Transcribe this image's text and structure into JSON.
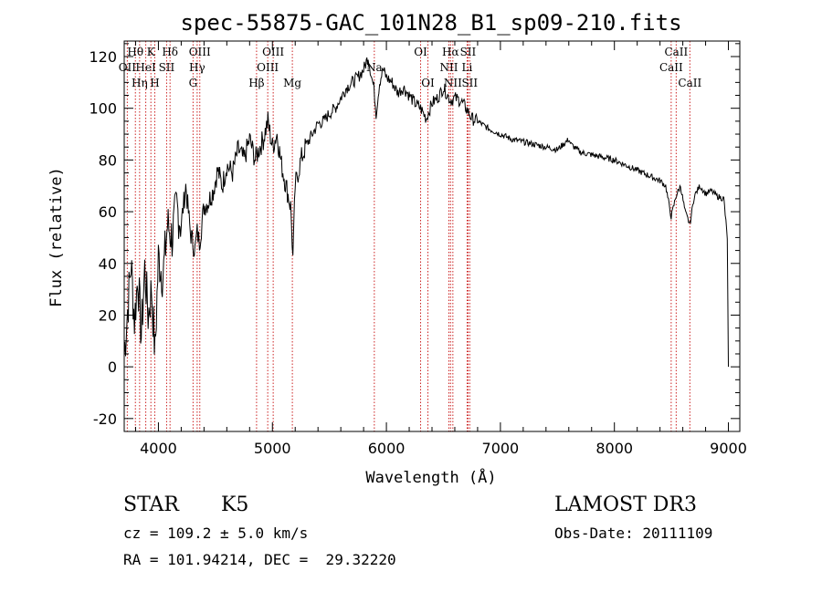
{
  "chart_data": {
    "type": "line",
    "title": "spec-55875-GAC_101N28_B1_sp09-210.fits",
    "xlabel": "Wavelength (Å)",
    "ylabel": "Flux (relative)",
    "xlim": [
      3700,
      9100
    ],
    "ylim": [
      -25,
      126
    ],
    "xticks": [
      4000,
      5000,
      6000,
      7000,
      8000,
      9000
    ],
    "yticks": [
      -20,
      0,
      20,
      40,
      60,
      80,
      100,
      120
    ],
    "grid": false,
    "series": [
      {
        "name": "flux",
        "x": [
          3700,
          3730,
          3760,
          3790,
          3820,
          3850,
          3880,
          3910,
          3940,
          3970,
          4000,
          4040,
          4080,
          4120,
          4160,
          4200,
          4240,
          4280,
          4320,
          4340,
          4360,
          4400,
          4440,
          4480,
          4520,
          4560,
          4600,
          4650,
          4700,
          4750,
          4800,
          4850,
          4880,
          4920,
          4960,
          5000,
          5040,
          5080,
          5120,
          5160,
          5180,
          5200,
          5250,
          5300,
          5350,
          5400,
          5450,
          5500,
          5550,
          5600,
          5650,
          5700,
          5750,
          5800,
          5840,
          5870,
          5890,
          5910,
          5940,
          5970,
          6000,
          6050,
          6100,
          6150,
          6200,
          6250,
          6300,
          6350,
          6400,
          6450,
          6500,
          6550,
          6563,
          6600,
          6650,
          6700,
          6750,
          6800,
          6900,
          7000,
          7100,
          7200,
          7300,
          7400,
          7500,
          7600,
          7620,
          7700,
          7800,
          7900,
          8000,
          8100,
          8200,
          8300,
          8400,
          8450,
          8498,
          8540,
          8580,
          8620,
          8662,
          8700,
          8750,
          8800,
          8850,
          8900,
          8960,
          8990,
          9000
        ],
        "y": [
          5,
          22,
          40,
          18,
          35,
          12,
          38,
          20,
          30,
          5,
          42,
          35,
          55,
          50,
          62,
          55,
          70,
          52,
          45,
          52,
          48,
          62,
          64,
          68,
          76,
          70,
          78,
          75,
          84,
          80,
          88,
          80,
          84,
          88,
          95,
          85,
          90,
          78,
          70,
          62,
          42,
          70,
          80,
          86,
          90,
          94,
          95,
          98,
          100,
          104,
          108,
          110,
          112,
          115,
          120,
          112,
          108,
          98,
          110,
          115,
          112,
          110,
          106,
          108,
          105,
          102,
          100,
          96,
          102,
          104,
          108,
          104,
          103,
          104,
          103,
          100,
          96,
          95,
          92,
          90,
          88,
          87,
          86,
          85,
          84,
          88,
          86,
          83,
          82,
          81,
          80,
          78,
          76,
          74,
          72,
          70,
          58,
          66,
          70,
          60,
          55,
          66,
          70,
          67,
          68,
          66,
          65,
          50,
          0
        ]
      }
    ],
    "spectral_lines": [
      {
        "label": "OII",
        "x": 3727,
        "row": 2
      },
      {
        "label": "Hθ",
        "x": 3798,
        "row": 1
      },
      {
        "label": "Hη",
        "x": 3835,
        "row": 3
      },
      {
        "label": "HeI",
        "x": 3889,
        "row": 2
      },
      {
        "label": "K",
        "x": 3934,
        "row": 1
      },
      {
        "label": "H",
        "x": 3968,
        "row": 3
      },
      {
        "label": "SII",
        "x": 4072,
        "row": 2
      },
      {
        "label": "Hδ",
        "x": 4102,
        "row": 1
      },
      {
        "label": "G",
        "x": 4304,
        "row": 3
      },
      {
        "label": "Hγ",
        "x": 4340,
        "row": 2
      },
      {
        "label": "OIII",
        "x": 4363,
        "row": 1
      },
      {
        "label": "Hβ",
        "x": 4861,
        "row": 3
      },
      {
        "label": "OIII",
        "x": 4959,
        "row": 2
      },
      {
        "label": "OIII",
        "x": 5007,
        "row": 1
      },
      {
        "label": "Mg",
        "x": 5175,
        "row": 3
      },
      {
        "label": "Na",
        "x": 5894,
        "row": 2
      },
      {
        "label": "OI",
        "x": 6300,
        "row": 1
      },
      {
        "label": "OI",
        "x": 6364,
        "row": 3
      },
      {
        "label": "NII",
        "x": 6548,
        "row": 2
      },
      {
        "label": "Hα",
        "x": 6563,
        "row": 1
      },
      {
        "label": "NII",
        "x": 6583,
        "row": 3
      },
      {
        "label": "Li",
        "x": 6708,
        "row": 2
      },
      {
        "label": "SII",
        "x": 6716,
        "row": 1
      },
      {
        "label": "SII",
        "x": 6731,
        "row": 3
      },
      {
        "label": "CaII",
        "x": 8498,
        "row": 2
      },
      {
        "label": "CaII",
        "x": 8542,
        "row": 1
      },
      {
        "label": "CaII",
        "x": 8662,
        "row": 3
      }
    ]
  },
  "info": {
    "object_class": "STAR",
    "subclass": "K5",
    "survey": "LAMOST DR3",
    "redshift": "cz = 109.2 ± 5.0 km/s",
    "obs_date": "Obs-Date: 20111109",
    "coords": "RA = 101.94214, DEC =  29.32220"
  },
  "colors": {
    "line_marker": "#cc2222",
    "spectrum": "#000000"
  }
}
